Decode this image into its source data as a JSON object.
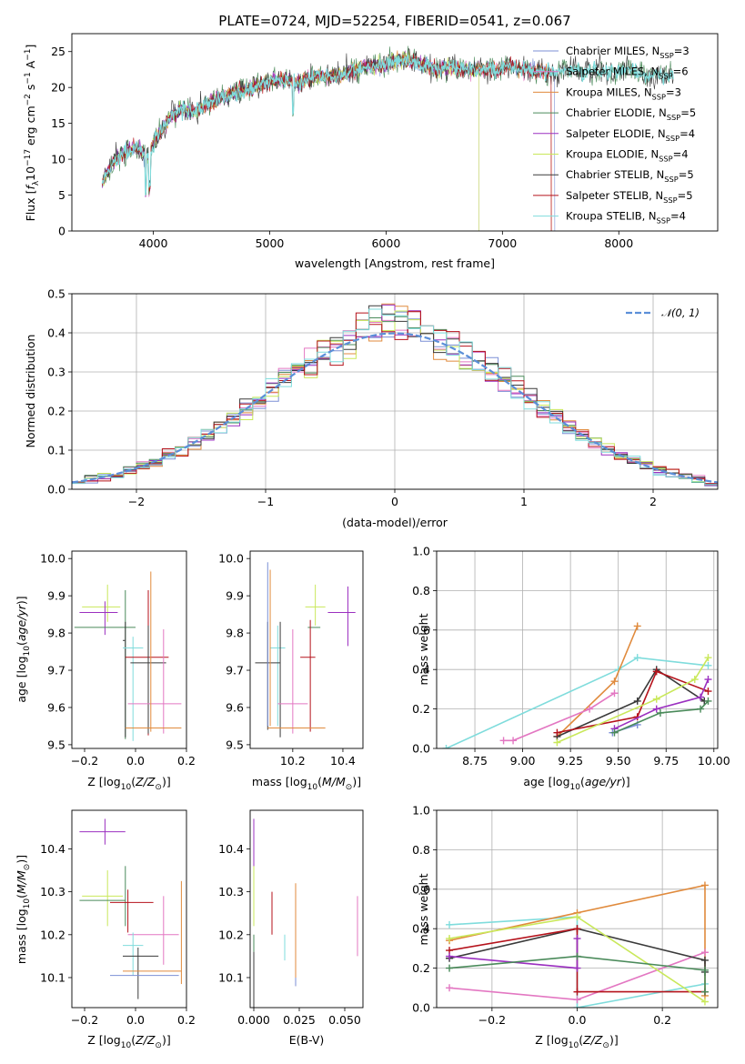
{
  "colors": {
    "chabrier_miles": "#7b8fd6",
    "salpeter_miles": "#e377c2",
    "kroupa_miles": "#e08a3c",
    "chabrier_elodie": "#4a8a5a",
    "salpeter_elodie": "#9b30c0",
    "kroupa_elodie": "#c9e85a",
    "chabrier_stelib": "#3a3a3a",
    "salpeter_stelib": "#b5121b",
    "kroupa_stelib": "#7fdcdc",
    "normal": "#5b8fd8",
    "grid": "#b0b0b0"
  },
  "chart_data": [
    {
      "id": "spectrum",
      "type": "line",
      "title": "PLATE=0724, MJD=52254, FIBERID=0541, z=0.067",
      "xlabel": "wavelength [Angstrom, rest frame]",
      "ylabel": "Flux [f_λ10^-17 erg cm^-2 s^-1 A^-1]",
      "xlim": [
        3300,
        8850
      ],
      "ylim": [
        0,
        27.5
      ],
      "xticks": [
        4000,
        5000,
        6000,
        7000,
        8000
      ],
      "yticks": [
        0,
        5,
        10,
        15,
        20,
        25
      ],
      "legend_position": "top-right",
      "legend": [
        {
          "name": "Chabrier MILES, N_SSP=3",
          "key": "chabrier_miles"
        },
        {
          "name": "Salpeter MILES, N_SSP=6",
          "key": "salpeter_miles"
        },
        {
          "name": "Kroupa MILES, N_SSP=3",
          "key": "kroupa_miles"
        },
        {
          "name": "Chabrier ELODIE, N_SSP=5",
          "key": "chabrier_elodie"
        },
        {
          "name": "Salpeter ELODIE, N_SSP=4",
          "key": "salpeter_elodie"
        },
        {
          "name": "Kroupa ELODIE, N_SSP=4",
          "key": "kroupa_elodie"
        },
        {
          "name": "Chabrier STELIB, N_SSP=5",
          "key": "chabrier_stelib"
        },
        {
          "name": "Salpeter STELIB, N_SSP=5",
          "key": "salpeter_stelib"
        },
        {
          "name": "Kroupa STELIB, N_SSP=4",
          "key": "kroupa_stelib"
        }
      ],
      "x": [
        3550,
        3650,
        3750,
        3850,
        3950,
        4050,
        4150,
        4250,
        4350,
        4450,
        4550,
        4650,
        4750,
        4850,
        4950,
        5050,
        5150,
        5250,
        5350,
        5450,
        5550,
        5650,
        5750,
        5850,
        5950,
        6050,
        6150,
        6250,
        6350,
        6450,
        6550,
        6650,
        6750,
        6850,
        6950,
        7050,
        7150,
        7250,
        7350,
        7450,
        7550,
        7650,
        7750,
        7850,
        7950,
        8050,
        8150,
        8250,
        8350,
        8450
      ],
      "y": [
        6.5,
        9.5,
        11.0,
        11.5,
        10.5,
        13.5,
        16.0,
        17.0,
        16.5,
        17.5,
        18.5,
        19.0,
        19.5,
        20.0,
        20.5,
        21.0,
        21.0,
        20.5,
        21.5,
        21.5,
        21.5,
        22.0,
        22.5,
        23.0,
        23.0,
        23.5,
        24.0,
        23.5,
        23.0,
        22.5,
        23.0,
        22.5,
        22.5,
        22.5,
        22.5,
        23.0,
        22.5,
        22.5,
        22.0,
        22.0,
        22.5,
        22.5,
        22.0,
        22.5,
        22.0,
        22.5,
        22.5,
        21.5,
        22.0,
        21.5
      ]
    },
    {
      "id": "residuals",
      "type": "step",
      "xlabel": "(data-model)/error",
      "ylabel": "Normed distribution",
      "xlim": [
        -2.5,
        2.5
      ],
      "ylim": [
        0,
        0.5
      ],
      "xticks": [
        -2,
        -1,
        0,
        1,
        2
      ],
      "yticks": [
        0.0,
        0.1,
        0.2,
        0.3,
        0.4,
        0.5
      ],
      "legend": [
        {
          "name": "𝒩(0, 1)"
        }
      ],
      "legend_position": "top-right",
      "bin_width": 0.1
    },
    {
      "id": "age_vs_Z",
      "type": "errorbar",
      "xlabel": "Z [log10(Z/Z⊙)]",
      "ylabel": "age  [log10(age/yr)]",
      "xlim": [
        -0.25,
        0.2
      ],
      "ylim": [
        9.49,
        10.02
      ],
      "xticks": [
        -0.2,
        0.0,
        0.2
      ],
      "yticks": [
        9.5,
        9.6,
        9.7,
        9.8,
        9.9,
        10.0
      ],
      "points": [
        {
          "key": "kroupa_elodie",
          "x": -0.11,
          "xerr": [
            0.1,
            0.05
          ],
          "y": 9.87,
          "yerr": [
            0.04,
            0.06
          ]
        },
        {
          "key": "salpeter_elodie",
          "x": -0.12,
          "xerr": [
            0.1,
            0.05
          ],
          "y": 9.855,
          "yerr": [
            0.06,
            0.03
          ]
        },
        {
          "key": "chabrier_elodie",
          "x": -0.04,
          "xerr": [
            0.2,
            0.04
          ],
          "y": 9.815,
          "yerr": [
            0.3,
            0.1
          ]
        },
        {
          "key": "chabrier_stelib",
          "x": -0.04,
          "xerr": [
            0.01,
            0.0
          ],
          "y": 9.78,
          "yerr": [
            0.26,
            0.05
          ]
        },
        {
          "key": "kroupa_stelib",
          "x": -0.01,
          "xerr": [
            0.04,
            0.04
          ],
          "y": 9.76,
          "yerr": [
            0.25,
            0.03
          ]
        },
        {
          "key": "salpeter_stelib",
          "x": 0.05,
          "xerr": [
            0.09,
            0.08
          ],
          "y": 9.735,
          "yerr": [
            0.21,
            0.18
          ]
        },
        {
          "key": "chabrier_stelib",
          "x": 0.05,
          "xerr": [
            0.07,
            0.07
          ],
          "y": 9.72,
          "yerr": [
            0.19,
            0.1
          ]
        },
        {
          "key": "salpeter_miles",
          "x": 0.11,
          "xerr": [
            0.14,
            0.07
          ],
          "y": 9.61,
          "yerr": [
            0.08,
            0.2
          ]
        },
        {
          "key": "kroupa_miles",
          "x": 0.06,
          "xerr": [
            0.1,
            0.12
          ],
          "y": 9.545,
          "yerr": [
            0.01,
            0.42
          ]
        }
      ]
    },
    {
      "id": "age_vs_mass",
      "type": "errorbar",
      "xlabel": "mass [log10(M/M⊙)]",
      "xlim": [
        10.03,
        10.48
      ],
      "ylim": [
        9.49,
        10.02
      ],
      "xticks": [
        10.2,
        10.4
      ],
      "yticks": [
        9.5,
        9.6,
        9.7,
        9.8,
        9.9,
        10.0
      ],
      "points": [
        {
          "key": "salpeter_elodie",
          "x": 10.42,
          "xerr": [
            0.08,
            0.03
          ],
          "y": 9.855,
          "yerr": [
            0.09,
            0.07
          ]
        },
        {
          "key": "kroupa_elodie",
          "x": 10.29,
          "xerr": [
            0.04,
            0.04
          ],
          "y": 9.87,
          "yerr": [
            0.05,
            0.06
          ]
        },
        {
          "key": "chabrier_elodie",
          "x": 10.26,
          "xerr": [
            0.0,
            0.05
          ],
          "y": 9.815,
          "yerr": [
            0.0,
            0.0
          ]
        },
        {
          "key": "kroupa_stelib",
          "x": 10.14,
          "xerr": [
            0.03,
            0.03
          ],
          "y": 9.76,
          "yerr": [
            0.21,
            0.06
          ]
        },
        {
          "key": "chabrier_stelib",
          "x": 10.15,
          "xerr": [
            0.0,
            0.0
          ],
          "y": 9.78,
          "yerr": [
            0.26,
            0.05
          ]
        },
        {
          "key": "salpeter_stelib",
          "x": 10.27,
          "xerr": [
            0.04,
            0.02
          ],
          "y": 9.735,
          "yerr": [
            0.2,
            0.1
          ]
        },
        {
          "key": "chabrier_stelib",
          "x": 10.1,
          "xerr": [
            0.05,
            0.05
          ],
          "y": 9.72,
          "yerr": [
            0.18,
            0.11
          ]
        },
        {
          "key": "salpeter_miles",
          "x": 10.2,
          "xerr": [
            0.06,
            0.06
          ],
          "y": 9.61,
          "yerr": [
            0.08,
            0.2
          ]
        },
        {
          "key": "kroupa_miles",
          "x": 10.2,
          "xerr": [
            0.1,
            0.13
          ],
          "y": 9.545,
          "yerr": [
            0.0,
            0.0
          ]
        },
        {
          "key": "chabrier_miles",
          "x": 10.1,
          "xerr": [
            0.0,
            0.0
          ],
          "y": 9.55,
          "yerr": [
            0.0,
            0.44
          ]
        },
        {
          "key": "kroupa_miles",
          "x": 10.11,
          "xerr": [
            0.0,
            0.0
          ],
          "y": 9.55,
          "yerr": [
            0.0,
            0.42
          ]
        }
      ]
    },
    {
      "id": "massweight_vs_age",
      "type": "line",
      "xlabel": "age  [log10(age/yr)]",
      "ylabel": "mass weight",
      "xlim": [
        8.55,
        10.02
      ],
      "ylim": [
        0,
        1.0
      ],
      "xticks": [
        8.75,
        9.0,
        9.25,
        9.5,
        9.75,
        10.0
      ],
      "yticks": [
        0.0,
        0.2,
        0.4,
        0.6,
        0.8,
        1.0
      ],
      "series": [
        {
          "key": "kroupa_stelib",
          "x": [
            8.6,
            9.5,
            9.6,
            9.97
          ],
          "y": [
            0.0,
            0.4,
            0.46,
            0.42
          ]
        },
        {
          "key": "kroupa_miles",
          "x": [
            9.18,
            9.48,
            9.6
          ],
          "y": [
            0.06,
            0.34,
            0.62
          ]
        },
        {
          "key": "salpeter_miles",
          "x": [
            8.9,
            8.95,
            9.35,
            9.48
          ],
          "y": [
            0.04,
            0.04,
            0.2,
            0.28
          ]
        },
        {
          "key": "chabrier_miles",
          "x": [
            9.47,
            9.6
          ],
          "y": [
            0.08,
            0.12
          ]
        },
        {
          "key": "chabrier_stelib",
          "x": [
            9.18,
            9.6,
            9.7,
            9.95
          ],
          "y": [
            0.06,
            0.24,
            0.4,
            0.24
          ]
        },
        {
          "key": "salpeter_stelib",
          "x": [
            9.18,
            9.6,
            9.7,
            9.97
          ],
          "y": [
            0.08,
            0.16,
            0.39,
            0.29
          ]
        },
        {
          "key": "kroupa_elodie",
          "x": [
            9.18,
            9.7,
            9.9,
            9.97
          ],
          "y": [
            0.03,
            0.25,
            0.35,
            0.46
          ]
        },
        {
          "key": "salpeter_elodie",
          "x": [
            9.48,
            9.7,
            9.93,
            9.97
          ],
          "y": [
            0.1,
            0.2,
            0.26,
            0.35
          ]
        },
        {
          "key": "chabrier_elodie",
          "x": [
            9.48,
            9.72,
            9.93,
            9.97
          ],
          "y": [
            0.08,
            0.18,
            0.2,
            0.24
          ]
        }
      ]
    },
    {
      "id": "mass_vs_Z",
      "type": "errorbar",
      "xlabel": "Z [log10(Z/Z⊙)]",
      "ylabel": "mass [log10(M/M⊙)]",
      "xlim": [
        -0.25,
        0.2
      ],
      "ylim": [
        10.03,
        10.49
      ],
      "xticks": [
        -0.2,
        0.0,
        0.2
      ],
      "yticks": [
        10.1,
        10.2,
        10.3,
        10.4
      ],
      "points": [
        {
          "key": "salpeter_elodie",
          "x": -0.12,
          "xerr": [
            0.1,
            0.08
          ],
          "y": 10.44,
          "yerr": [
            0.03,
            0.03
          ]
        },
        {
          "key": "kroupa_elodie",
          "x": -0.11,
          "xerr": [
            0.1,
            0.06
          ],
          "y": 10.29,
          "yerr": [
            0.07,
            0.06
          ]
        },
        {
          "key": "chabrier_elodie",
          "x": -0.04,
          "xerr": [
            0.18,
            0.0
          ],
          "y": 10.28,
          "yerr": [
            0.06,
            0.08
          ]
        },
        {
          "key": "salpeter_stelib",
          "x": -0.03,
          "xerr": [
            0.07,
            0.1
          ],
          "y": 10.275,
          "yerr": [
            0.07,
            0.03
          ]
        },
        {
          "key": "salpeter_miles",
          "x": 0.11,
          "xerr": [
            0.14,
            0.06
          ],
          "y": 10.2,
          "yerr": [
            0.07,
            0.09
          ]
        },
        {
          "key": "kroupa_stelib",
          "x": -0.01,
          "xerr": [
            0.04,
            0.04
          ],
          "y": 10.175,
          "yerr": [
            0.07,
            0.03
          ]
        },
        {
          "key": "chabrier_stelib",
          "x": 0.01,
          "xerr": [
            0.06,
            0.08
          ],
          "y": 10.15,
          "yerr": [
            0.1,
            0.02
          ]
        },
        {
          "key": "kroupa_miles",
          "x": 0.18,
          "xerr": [
            0.23,
            0.0
          ],
          "y": 10.115,
          "yerr": [
            0.03,
            0.21
          ]
        },
        {
          "key": "chabrier_miles",
          "x": 0.03,
          "xerr": [
            0.13,
            0.14
          ],
          "y": 10.105,
          "yerr": [
            0.0,
            0.0
          ]
        }
      ]
    },
    {
      "id": "mass_vs_EBV",
      "type": "errorbar",
      "xlabel": "E(B-V)",
      "xlim": [
        -0.002,
        0.06
      ],
      "ylim": [
        10.03,
        10.49
      ],
      "xticks": [
        0.0,
        0.025,
        0.05
      ],
      "yticks": [
        10.1,
        10.2,
        10.3,
        10.4
      ],
      "points": [
        {
          "key": "salpeter_elodie",
          "x": 0.0,
          "xerr": [
            0,
            0
          ],
          "y": 10.43,
          "yerr": [
            0.09,
            0.04
          ]
        },
        {
          "key": "kroupa_elodie",
          "x": 0.0,
          "xerr": [
            0,
            0
          ],
          "y": 10.29,
          "yerr": [
            0.07,
            0.07
          ]
        },
        {
          "key": "chabrier_elodie",
          "x": 0.0,
          "xerr": [
            0,
            0
          ],
          "y": 10.2,
          "yerr": [
            0.04,
            0.0
          ]
        },
        {
          "key": "chabrier_stelib",
          "x": 0.0,
          "xerr": [
            0,
            0
          ],
          "y": 10.12,
          "yerr": [
            0.1,
            0.04
          ]
        },
        {
          "key": "salpeter_stelib",
          "x": 0.01,
          "xerr": [
            0,
            0
          ],
          "y": 10.27,
          "yerr": [
            0.07,
            0.03
          ]
        },
        {
          "key": "kroupa_stelib",
          "x": 0.017,
          "xerr": [
            0,
            0
          ],
          "y": 10.17,
          "yerr": [
            0.03,
            0.03
          ]
        },
        {
          "key": "kroupa_miles",
          "x": 0.023,
          "xerr": [
            0,
            0
          ],
          "y": 10.2,
          "yerr": [
            0.12,
            0.12
          ]
        },
        {
          "key": "chabrier_miles",
          "x": 0.023,
          "xerr": [
            0,
            0
          ],
          "y": 10.1,
          "yerr": [
            0.02,
            0.0
          ]
        },
        {
          "key": "salpeter_miles",
          "x": 0.057,
          "xerr": [
            0,
            0
          ],
          "y": 10.22,
          "yerr": [
            0.07,
            0.07
          ]
        }
      ]
    },
    {
      "id": "massweight_vs_Z",
      "type": "line",
      "xlabel": "Z [log10(Z/Z⊙)]",
      "ylabel": "mass weight",
      "xlim": [
        -0.33,
        0.33
      ],
      "ylim": [
        0,
        1.0
      ],
      "xticks": [
        -0.2,
        0.0,
        0.2
      ],
      "yticks": [
        0.0,
        0.2,
        0.4,
        0.6,
        0.8,
        1.0
      ],
      "series": [
        {
          "key": "kroupa_stelib",
          "x": [
            -0.3,
            0.0,
            0.0,
            0.3
          ],
          "y": [
            0.42,
            0.46,
            0.0,
            0.12
          ]
        },
        {
          "key": "kroupa_miles",
          "x": [
            -0.3,
            0.0,
            0.3,
            0.3
          ],
          "y": [
            0.34,
            0.48,
            0.62,
            0.06
          ]
        },
        {
          "key": "salpeter_miles",
          "x": [
            -0.3,
            0.0,
            0.3
          ],
          "y": [
            0.1,
            0.04,
            0.28
          ]
        },
        {
          "key": "chabrier_stelib",
          "x": [
            -0.3,
            0.0,
            0.3,
            0.3
          ],
          "y": [
            0.25,
            0.4,
            0.24,
            0.18
          ]
        },
        {
          "key": "salpeter_stelib",
          "x": [
            -0.3,
            0.0,
            0.0,
            0.3
          ],
          "y": [
            0.29,
            0.4,
            0.08,
            0.08
          ]
        },
        {
          "key": "kroupa_elodie",
          "x": [
            -0.3,
            0.0,
            0.3
          ],
          "y": [
            0.35,
            0.46,
            0.03
          ]
        },
        {
          "key": "salpeter_elodie",
          "x": [
            -0.3,
            0.0,
            0.0
          ],
          "y": [
            0.26,
            0.2,
            0.35
          ]
        },
        {
          "key": "chabrier_elodie",
          "x": [
            -0.3,
            0.0,
            0.3,
            0.3
          ],
          "y": [
            0.2,
            0.26,
            0.19,
            0.08
          ]
        }
      ]
    }
  ]
}
